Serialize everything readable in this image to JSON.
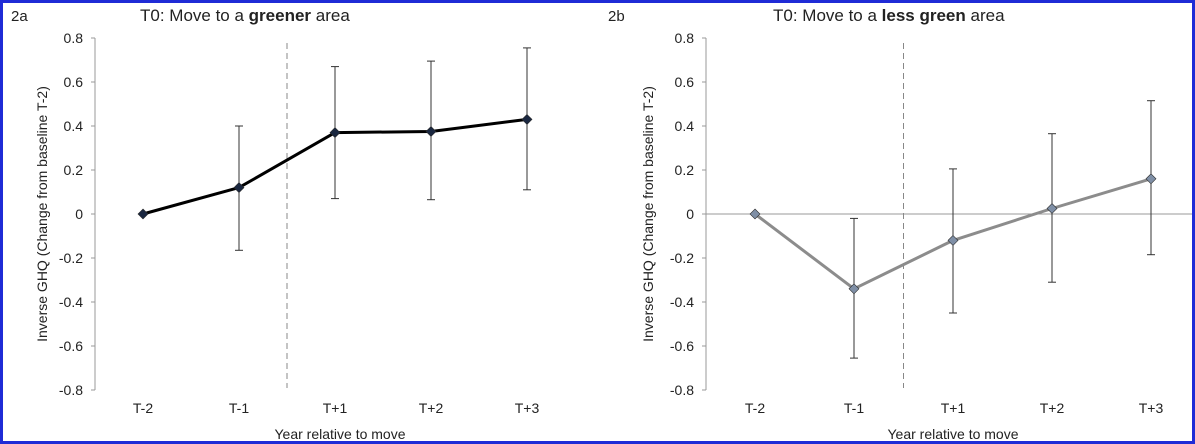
{
  "chart_data": [
    {
      "panel_label": "2a",
      "type": "line",
      "title_prefix": "T0: Move to a ",
      "title_bold": "greener",
      "title_suffix": " area",
      "xlabel": "Year relative  to move",
      "ylabel": "Inverse  GHQ  (Change from baseline T-2)",
      "categories": [
        "T-2",
        "T-1",
        "T+1",
        "T+2",
        "T+3"
      ],
      "values": [
        0.0,
        0.12,
        0.37,
        0.375,
        0.43
      ],
      "error_low": [
        0.0,
        -0.165,
        0.07,
        0.065,
        0.11
      ],
      "error_high": [
        0.0,
        0.4,
        0.67,
        0.695,
        0.755
      ],
      "ylim": [
        -0.8,
        0.8
      ],
      "yticks": [
        "0.8",
        "0.6",
        "0.4",
        "0.2",
        "0",
        "-0.2",
        "-0.4",
        "-0.6",
        "-0.8"
      ],
      "line_color": "#000000",
      "marker_color": "#1a2740",
      "zero_line": false,
      "dashed_divider_between": [
        "T-1",
        "T+1"
      ]
    },
    {
      "panel_label": "2b",
      "type": "line",
      "title_prefix": "T0: Move to a ",
      "title_bold": "less green",
      "title_suffix": " area",
      "xlabel": "Year relative  to move",
      "ylabel": "Inverse  GHQ  (Change from baseline T-2)",
      "categories": [
        "T-2",
        "T-1",
        "T+1",
        "T+2",
        "T+3"
      ],
      "values": [
        0.0,
        -0.34,
        -0.12,
        0.025,
        0.16
      ],
      "error_low": [
        0.0,
        -0.655,
        -0.45,
        -0.31,
        -0.185
      ],
      "error_high": [
        0.0,
        -0.02,
        0.205,
        0.365,
        0.515
      ],
      "ylim": [
        -0.8,
        0.8
      ],
      "yticks": [
        "0.8",
        "0.6",
        "0.4",
        "0.2",
        "0",
        "-0.2",
        "-0.4",
        "-0.6",
        "-0.8"
      ],
      "line_color": "#8c8c8c",
      "marker_color": "#7f8fa6",
      "zero_line": true,
      "dashed_divider_between": [
        "T-1",
        "T+1"
      ]
    }
  ]
}
